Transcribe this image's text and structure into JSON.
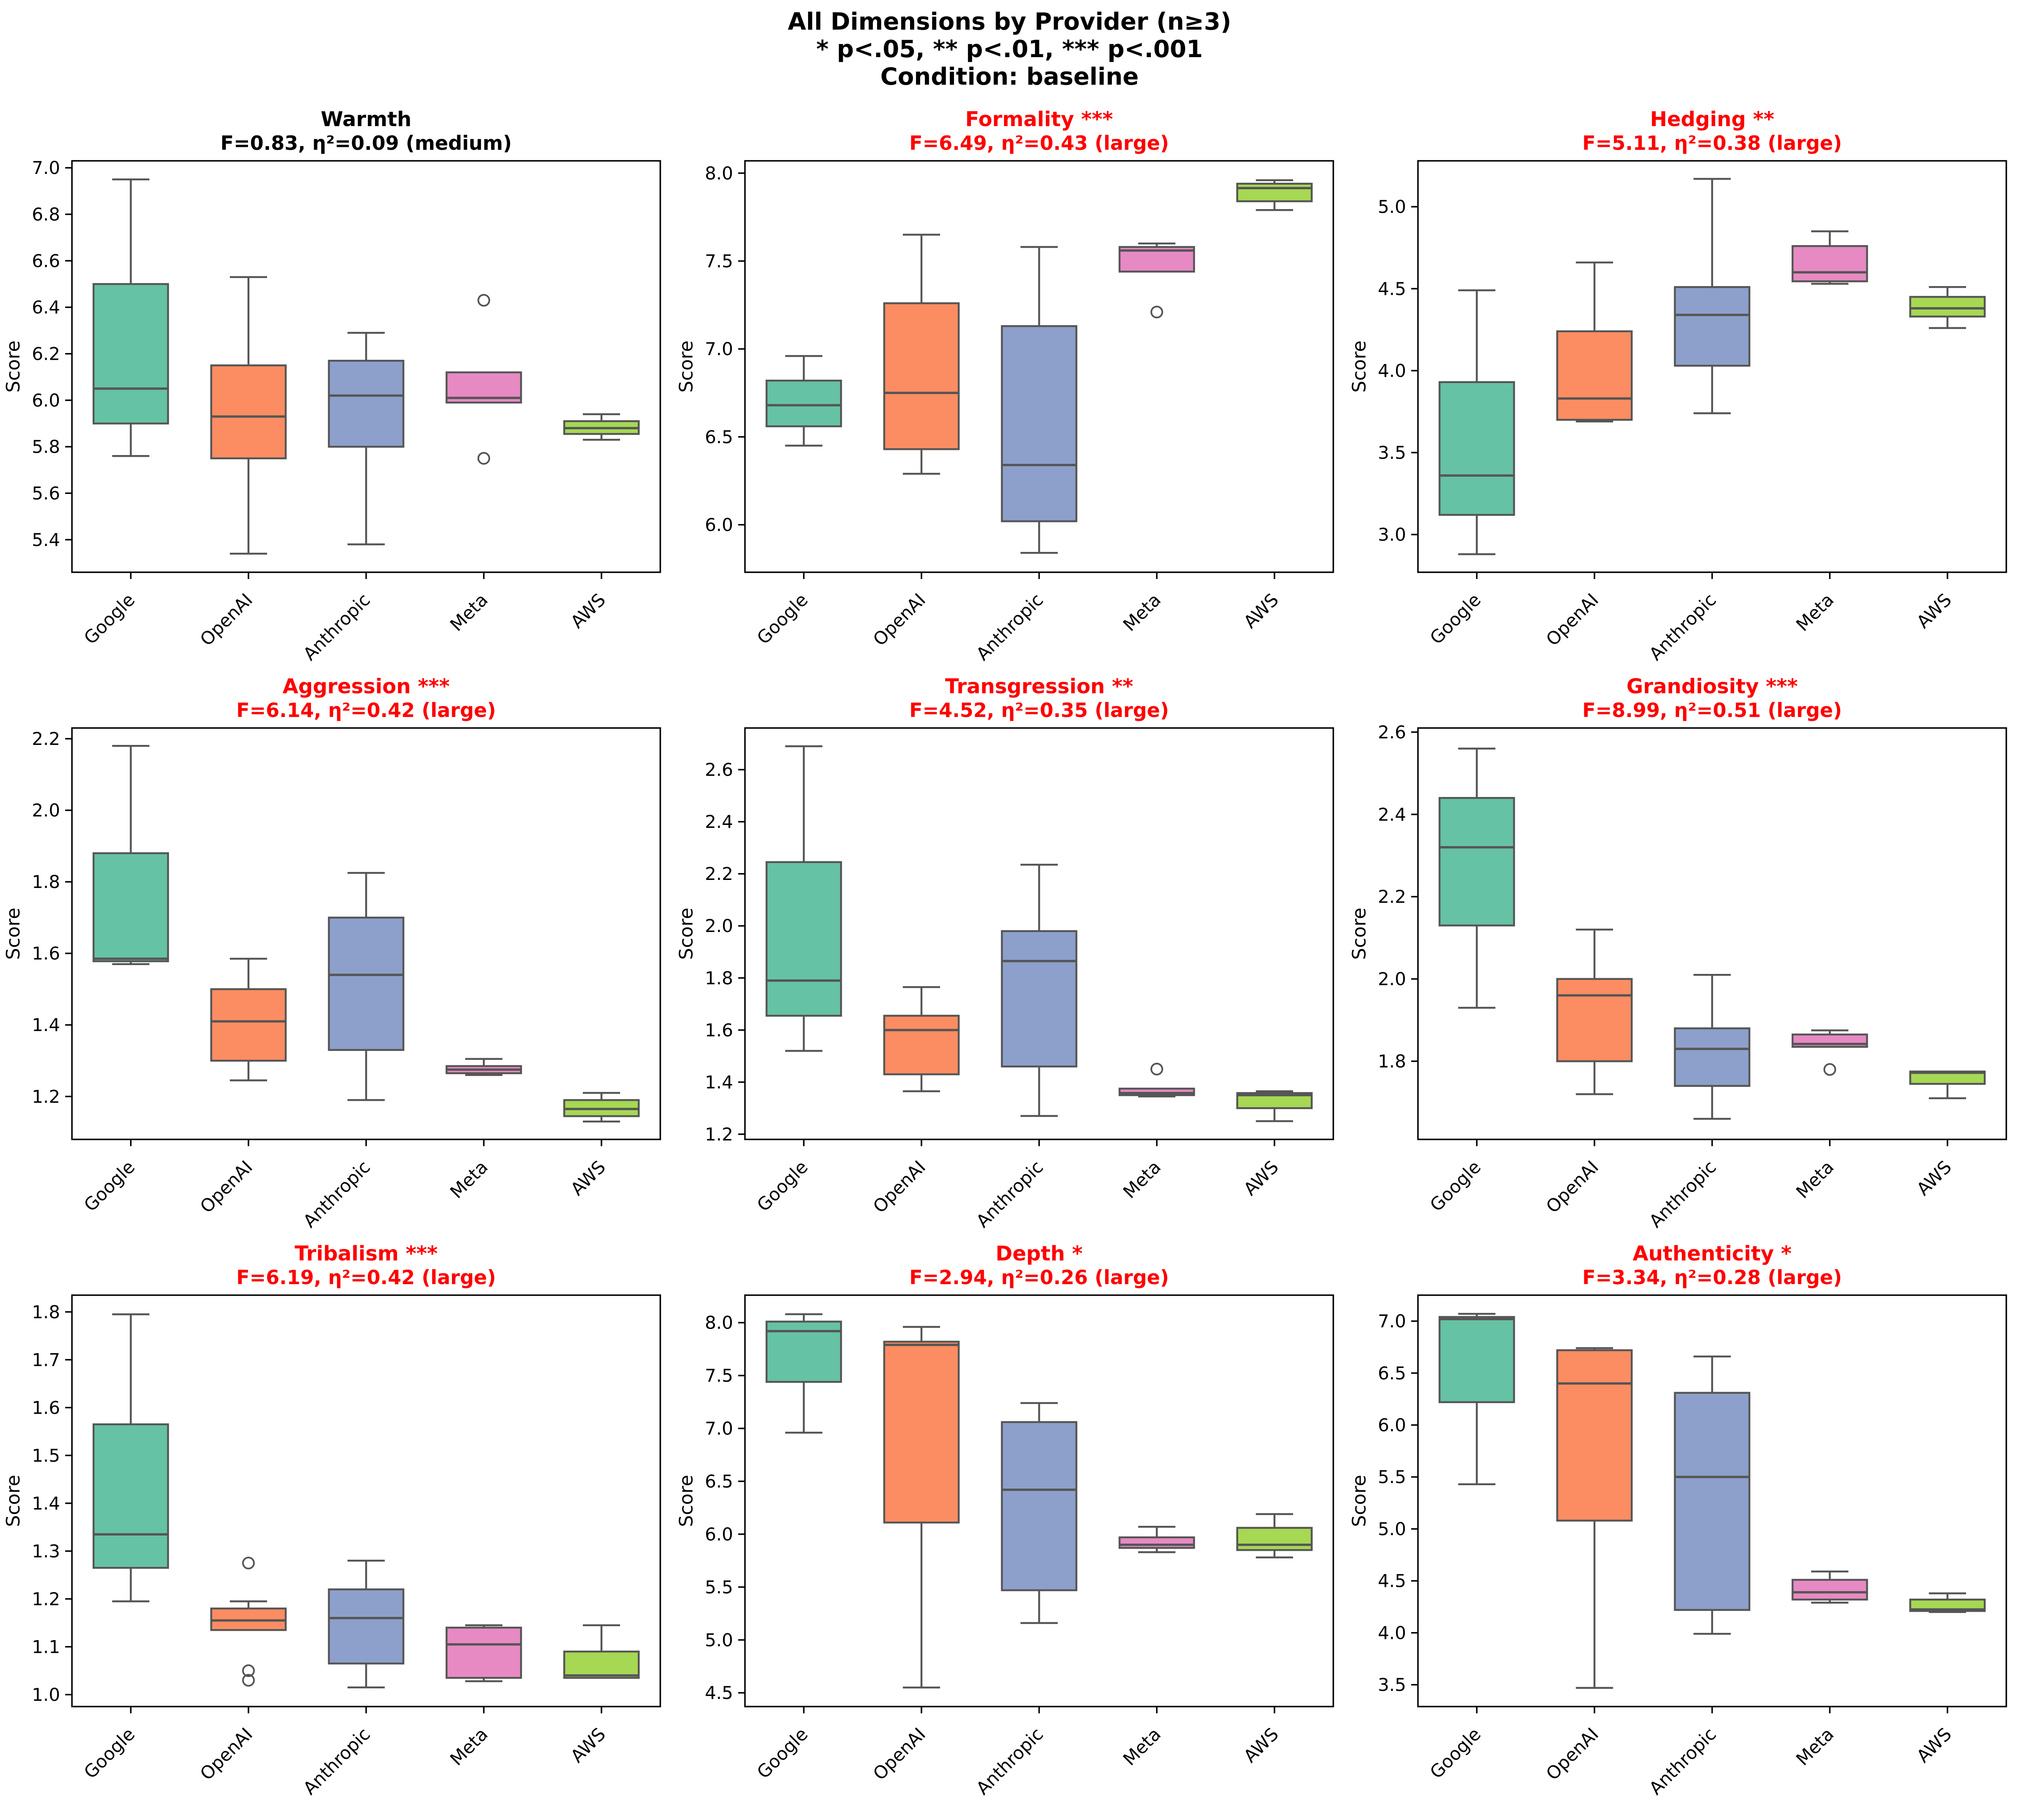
{
  "header": {
    "title": "All Dimensions by Provider (n≥3)",
    "subtitle": "* p<.05, ** p<.01, *** p<.001",
    "condition": "Condition: baseline"
  },
  "categories": [
    "Google",
    "OpenAI",
    "Anthropic",
    "Meta",
    "AWS"
  ],
  "palette": {
    "colors": [
      "#66c2a5",
      "#fc8d62",
      "#8da0cb",
      "#e78ac3",
      "#a6d854"
    ],
    "box_edge": "#555555",
    "spine": "#000000",
    "significant_title": "#ff0000",
    "normal_title": "#000000"
  },
  "chart_data": [
    {
      "type": "boxplot",
      "title": "Warmth",
      "stats_line": "F=0.83, η²=0.09 (medium)",
      "significant": false,
      "ylabel": "Score",
      "ylim": [
        5.26,
        7.03
      ],
      "yticks": [
        5.4,
        5.6,
        5.8,
        6.0,
        6.2,
        6.4,
        6.6,
        6.8,
        7.0
      ],
      "boxes": [
        {
          "low": 5.76,
          "q1": 5.9,
          "med": 6.05,
          "q3": 6.5,
          "high": 6.95,
          "outliers": []
        },
        {
          "low": 5.34,
          "q1": 5.75,
          "med": 5.93,
          "q3": 6.15,
          "high": 6.53,
          "outliers": []
        },
        {
          "low": 5.38,
          "q1": 5.8,
          "med": 6.02,
          "q3": 6.17,
          "high": 6.29,
          "outliers": []
        },
        {
          "low": 5.99,
          "q1": 5.99,
          "med": 6.01,
          "q3": 6.12,
          "high": 6.12,
          "outliers": [
            6.43,
            5.75
          ]
        },
        {
          "low": 5.83,
          "q1": 5.855,
          "med": 5.88,
          "q3": 5.91,
          "high": 5.94,
          "outliers": []
        }
      ]
    },
    {
      "type": "boxplot",
      "title": "Formality ***",
      "stats_line": "F=6.49, η²=0.43 (large)",
      "significant": true,
      "ylabel": "Score",
      "ylim": [
        5.73,
        8.07
      ],
      "yticks": [
        6.0,
        6.5,
        7.0,
        7.5,
        8.0
      ],
      "boxes": [
        {
          "low": 6.45,
          "q1": 6.56,
          "med": 6.68,
          "q3": 6.82,
          "high": 6.96,
          "outliers": []
        },
        {
          "low": 6.29,
          "q1": 6.43,
          "med": 6.75,
          "q3": 7.26,
          "high": 7.65,
          "outliers": []
        },
        {
          "low": 5.84,
          "q1": 6.02,
          "med": 6.34,
          "q3": 7.13,
          "high": 7.58,
          "outliers": []
        },
        {
          "low": 7.44,
          "q1": 7.44,
          "med": 7.56,
          "q3": 7.58,
          "high": 7.6,
          "outliers": [
            7.21
          ]
        },
        {
          "low": 7.79,
          "q1": 7.84,
          "med": 7.915,
          "q3": 7.94,
          "high": 7.96,
          "outliers": []
        }
      ]
    },
    {
      "type": "boxplot",
      "title": "Hedging **",
      "stats_line": "F=5.11, η²=0.38 (large)",
      "significant": true,
      "ylabel": "Score",
      "ylim": [
        2.77,
        5.28
      ],
      "yticks": [
        3.0,
        3.5,
        4.0,
        4.5,
        5.0
      ],
      "boxes": [
        {
          "low": 2.88,
          "q1": 3.12,
          "med": 3.36,
          "q3": 3.93,
          "high": 4.49,
          "outliers": []
        },
        {
          "low": 3.69,
          "q1": 3.7,
          "med": 3.83,
          "q3": 4.24,
          "high": 4.66,
          "outliers": []
        },
        {
          "low": 3.74,
          "q1": 4.03,
          "med": 4.34,
          "q3": 4.51,
          "high": 5.17,
          "outliers": []
        },
        {
          "low": 4.53,
          "q1": 4.545,
          "med": 4.6,
          "q3": 4.76,
          "high": 4.85,
          "outliers": []
        },
        {
          "low": 4.26,
          "q1": 4.33,
          "med": 4.38,
          "q3": 4.45,
          "high": 4.51,
          "outliers": []
        }
      ]
    },
    {
      "type": "boxplot",
      "title": "Aggression ***",
      "stats_line": "F=6.14, η²=0.42 (large)",
      "significant": true,
      "ylabel": "Score",
      "ylim": [
        1.08,
        2.23
      ],
      "yticks": [
        1.2,
        1.4,
        1.6,
        1.8,
        2.0,
        2.2
      ],
      "boxes": [
        {
          "low": 1.57,
          "q1": 1.578,
          "med": 1.585,
          "q3": 1.88,
          "high": 2.18,
          "outliers": []
        },
        {
          "low": 1.245,
          "q1": 1.3,
          "med": 1.41,
          "q3": 1.5,
          "high": 1.585,
          "outliers": []
        },
        {
          "low": 1.19,
          "q1": 1.33,
          "med": 1.54,
          "q3": 1.7,
          "high": 1.825,
          "outliers": []
        },
        {
          "low": 1.26,
          "q1": 1.265,
          "med": 1.275,
          "q3": 1.285,
          "high": 1.305,
          "outliers": []
        },
        {
          "low": 1.13,
          "q1": 1.145,
          "med": 1.165,
          "q3": 1.19,
          "high": 1.21,
          "outliers": []
        }
      ]
    },
    {
      "type": "boxplot",
      "title": "Transgression **",
      "stats_line": "F=4.52, η²=0.35 (large)",
      "significant": true,
      "ylabel": "Score",
      "ylim": [
        1.18,
        2.76
      ],
      "yticks": [
        1.2,
        1.4,
        1.6,
        1.8,
        2.0,
        2.2,
        2.4,
        2.6
      ],
      "boxes": [
        {
          "low": 1.52,
          "q1": 1.655,
          "med": 1.79,
          "q3": 2.245,
          "high": 2.69,
          "outliers": []
        },
        {
          "low": 1.365,
          "q1": 1.43,
          "med": 1.6,
          "q3": 1.655,
          "high": 1.765,
          "outliers": []
        },
        {
          "low": 1.27,
          "q1": 1.46,
          "med": 1.865,
          "q3": 1.98,
          "high": 2.235,
          "outliers": []
        },
        {
          "low": 1.345,
          "q1": 1.35,
          "med": 1.358,
          "q3": 1.375,
          "high": 1.375,
          "outliers": [
            1.45
          ]
        },
        {
          "low": 1.25,
          "q1": 1.3,
          "med": 1.35,
          "q3": 1.358,
          "high": 1.365,
          "outliers": []
        }
      ]
    },
    {
      "type": "boxplot",
      "title": "Grandiosity ***",
      "stats_line": "F=8.99, η²=0.51 (large)",
      "significant": true,
      "ylabel": "Score",
      "ylim": [
        1.61,
        2.61
      ],
      "yticks": [
        1.8,
        2.0,
        2.2,
        2.4,
        2.6
      ],
      "boxes": [
        {
          "low": 1.93,
          "q1": 2.13,
          "med": 2.32,
          "q3": 2.44,
          "high": 2.56,
          "outliers": []
        },
        {
          "low": 1.72,
          "q1": 1.8,
          "med": 1.96,
          "q3": 2.0,
          "high": 2.12,
          "outliers": []
        },
        {
          "low": 1.66,
          "q1": 1.74,
          "med": 1.83,
          "q3": 1.88,
          "high": 2.01,
          "outliers": []
        },
        {
          "low": 1.835,
          "q1": 1.835,
          "med": 1.842,
          "q3": 1.865,
          "high": 1.875,
          "outliers": [
            1.78
          ]
        },
        {
          "low": 1.71,
          "q1": 1.745,
          "med": 1.772,
          "q3": 1.775,
          "high": 1.775,
          "outliers": []
        }
      ]
    },
    {
      "type": "boxplot",
      "title": "Tribalism ***",
      "stats_line": "F=6.19, η²=0.42 (large)",
      "significant": true,
      "ylabel": "Score",
      "ylim": [
        0.975,
        1.835
      ],
      "yticks": [
        1.0,
        1.1,
        1.2,
        1.3,
        1.4,
        1.5,
        1.6,
        1.7,
        1.8
      ],
      "boxes": [
        {
          "low": 1.195,
          "q1": 1.265,
          "med": 1.335,
          "q3": 1.565,
          "high": 1.795,
          "outliers": []
        },
        {
          "low": 1.135,
          "q1": 1.135,
          "med": 1.155,
          "q3": 1.18,
          "high": 1.195,
          "outliers": [
            1.275,
            1.05,
            1.03
          ]
        },
        {
          "low": 1.015,
          "q1": 1.065,
          "med": 1.16,
          "q3": 1.22,
          "high": 1.28,
          "outliers": []
        },
        {
          "low": 1.028,
          "q1": 1.035,
          "med": 1.105,
          "q3": 1.14,
          "high": 1.145,
          "outliers": []
        },
        {
          "low": 1.035,
          "q1": 1.035,
          "med": 1.04,
          "q3": 1.09,
          "high": 1.145,
          "outliers": []
        }
      ]
    },
    {
      "type": "boxplot",
      "title": "Depth *",
      "stats_line": "F=2.94, η²=0.26 (large)",
      "significant": true,
      "ylabel": "Score",
      "ylim": [
        4.37,
        8.26
      ],
      "yticks": [
        4.5,
        5.0,
        5.5,
        6.0,
        6.5,
        7.0,
        7.5,
        8.0
      ],
      "boxes": [
        {
          "low": 6.96,
          "q1": 7.44,
          "med": 7.92,
          "q3": 8.01,
          "high": 8.08,
          "outliers": []
        },
        {
          "low": 4.55,
          "q1": 6.11,
          "med": 7.79,
          "q3": 7.82,
          "high": 7.96,
          "outliers": []
        },
        {
          "low": 5.16,
          "q1": 5.47,
          "med": 6.42,
          "q3": 7.06,
          "high": 7.24,
          "outliers": []
        },
        {
          "low": 5.83,
          "q1": 5.87,
          "med": 5.9,
          "q3": 5.97,
          "high": 6.07,
          "outliers": []
        },
        {
          "low": 5.78,
          "q1": 5.85,
          "med": 5.9,
          "q3": 6.06,
          "high": 6.19,
          "outliers": []
        }
      ]
    },
    {
      "type": "boxplot",
      "title": "Authenticity *",
      "stats_line": "F=3.34, η²=0.28 (large)",
      "significant": true,
      "ylabel": "Score",
      "ylim": [
        3.29,
        7.25
      ],
      "yticks": [
        3.5,
        4.0,
        4.5,
        5.0,
        5.5,
        6.0,
        6.5,
        7.0
      ],
      "boxes": [
        {
          "low": 5.43,
          "q1": 6.22,
          "med": 7.02,
          "q3": 7.04,
          "high": 7.07,
          "outliers": []
        },
        {
          "low": 3.47,
          "q1": 5.08,
          "med": 6.4,
          "q3": 6.72,
          "high": 6.74,
          "outliers": []
        },
        {
          "low": 3.99,
          "q1": 4.22,
          "med": 5.5,
          "q3": 6.31,
          "high": 6.66,
          "outliers": []
        },
        {
          "low": 4.29,
          "q1": 4.32,
          "med": 4.39,
          "q3": 4.51,
          "high": 4.59,
          "outliers": []
        },
        {
          "low": 4.2,
          "q1": 4.21,
          "med": 4.225,
          "q3": 4.32,
          "high": 4.38,
          "outliers": []
        }
      ]
    }
  ]
}
